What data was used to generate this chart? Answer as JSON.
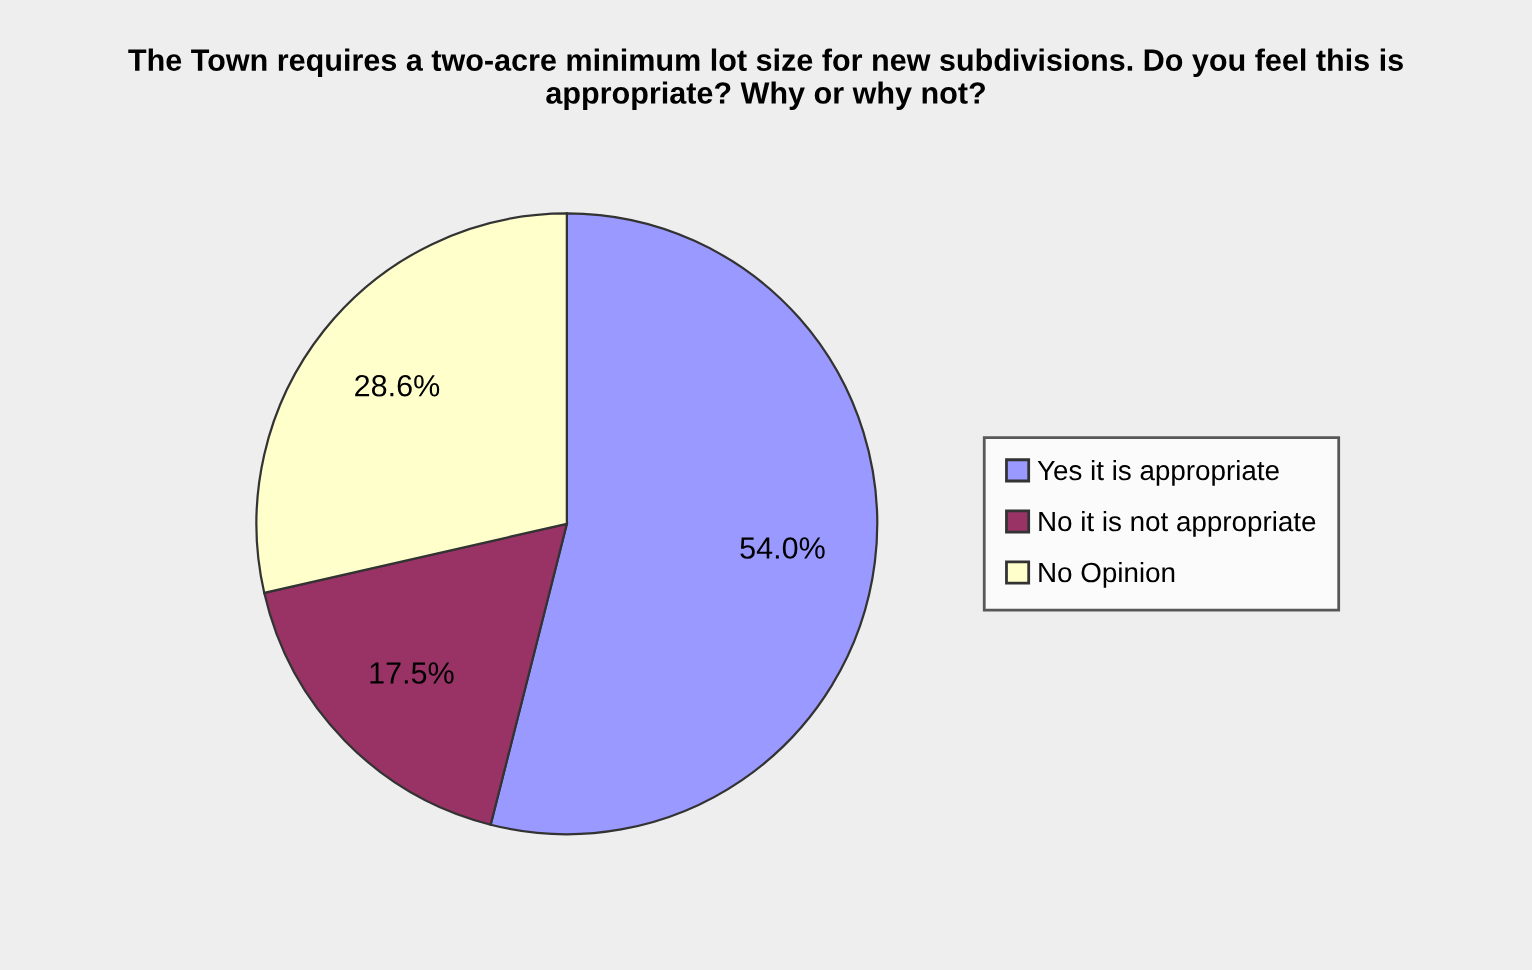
{
  "chart_data": {
    "type": "pie",
    "title": "The Town requires a two-acre minimum lot size for new subdivisions. Do you feel this is appropriate? Why or why not?",
    "categories": [
      "Yes it is appropriate",
      "No it is not appropriate",
      "No Opinion"
    ],
    "values": [
      54.0,
      17.5,
      28.6
    ],
    "colors": [
      "#9999ff",
      "#993366",
      "#ffffcc"
    ],
    "value_labels": [
      "54.0%",
      "17.5%",
      "28.6%"
    ],
    "legend": "right"
  }
}
